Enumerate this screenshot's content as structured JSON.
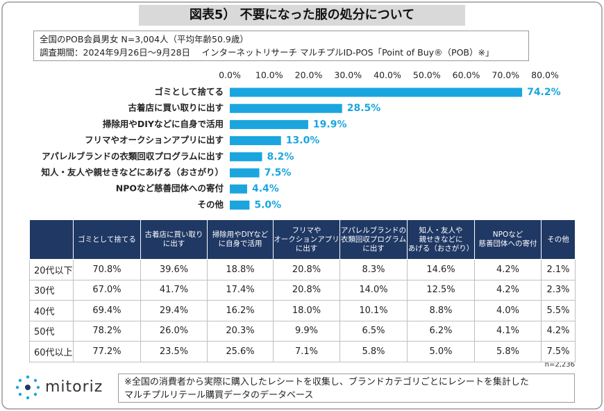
{
  "title": "図表5） 不要になった服の処分について",
  "info_lines": [
    "全国のPOB会員男女 N=3,004人（平均年齢50.9歳）",
    "調査期間：2024年9月26日～9月28日　 インターネットリサーチ マルチプルID-POS「Point of Buy®（POB）※」"
  ],
  "chart_data": {
    "type": "bar",
    "orientation": "horizontal",
    "categories": [
      "ゴミとして捨てる",
      "古着店に買い取りに出す",
      "掃除用やDIYなどに自身で活用",
      "フリマやオークションアプリに出す",
      "アパレルブランドの衣類回収プログラムに出す",
      "知人・友人や親せきなどにあげる（おさがり）",
      "NPOなど慈善団体への寄付",
      "その他"
    ],
    "values": [
      74.2,
      28.5,
      19.9,
      13.0,
      8.2,
      7.5,
      4.4,
      5.0
    ],
    "value_labels": [
      "74.2%",
      "28.5%",
      "19.9%",
      "13.0%",
      "8.2%",
      "7.5%",
      "4.4%",
      "5.0%"
    ],
    "color": "#1aa5df",
    "xlim": [
      0,
      80
    ],
    "xticks": [
      {
        "value": 0,
        "label": "0.0%"
      },
      {
        "value": 10,
        "label": "10.0%"
      },
      {
        "value": 20,
        "label": "20.0%"
      },
      {
        "value": 30,
        "label": "30.0%"
      },
      {
        "value": 40,
        "label": "40.0%"
      },
      {
        "value": 50,
        "label": "50.0%"
      },
      {
        "value": 60,
        "label": "60.0%"
      },
      {
        "value": 70,
        "label": "70.0%"
      },
      {
        "value": 80,
        "label": "80.0%"
      }
    ]
  },
  "table": {
    "header": [
      "ゴミとして捨てる",
      "古着店に買い取り\nに出す",
      "掃除用やDIYなど\nに自身で活用",
      "フリマや\nオークションアプリ\nに出す",
      "アパレルブランドの\n衣類回収プログラム\nに出す",
      "知人・友人や\n親せきなどに\nあげる（おさがり）",
      "NPOなど\n慈善団体への寄付",
      "その他"
    ],
    "rows": [
      {
        "label": "20代以下",
        "cells": [
          "70.8%",
          "39.6%",
          "18.8%",
          "20.8%",
          "8.3%",
          "14.6%",
          "4.2%",
          "2.1%"
        ]
      },
      {
        "label": "30代",
        "cells": [
          "67.0%",
          "41.7%",
          "17.4%",
          "20.8%",
          "14.0%",
          "12.5%",
          "4.2%",
          "2.3%"
        ]
      },
      {
        "label": "40代",
        "cells": [
          "69.4%",
          "29.4%",
          "16.2%",
          "18.0%",
          "10.1%",
          "8.8%",
          "4.0%",
          "5.5%"
        ]
      },
      {
        "label": "50代",
        "cells": [
          "78.2%",
          "26.0%",
          "20.3%",
          "9.9%",
          "6.5%",
          "6.2%",
          "4.1%",
          "4.2%"
        ]
      },
      {
        "label": "60代以上",
        "cells": [
          "77.2%",
          "23.5%",
          "25.6%",
          "7.1%",
          "5.8%",
          "5.0%",
          "5.8%",
          "7.5%"
        ]
      }
    ]
  },
  "sample_note": "n=2,236",
  "logo": "mitoriz",
  "footnote_lines": [
    "※全国の消費者から実際に購入したレシートを収集し、ブランドカテゴリごとにレシートを集計した",
    "マルチプルリテール購買データのデータベース"
  ]
}
